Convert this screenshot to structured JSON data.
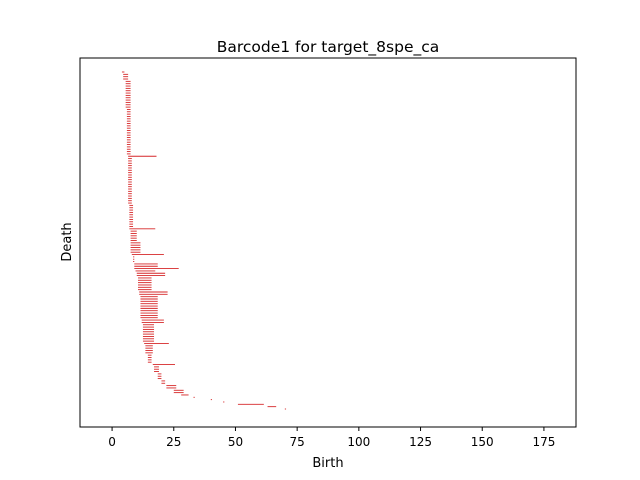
{
  "chart_data": {
    "type": "barcode",
    "title": "Barcode1 for target_8spe_ca",
    "xlabel": "Birth",
    "ylabel": "Death",
    "xlim": [
      -13,
      188
    ],
    "xticks": [
      0,
      25,
      50,
      75,
      100,
      125,
      150,
      175
    ],
    "bar_color": "#d62728",
    "intervals": [
      {
        "birth": 4.0,
        "death": 5.0,
        "bars": 1
      },
      {
        "birth": 4.5,
        "death": 6.5,
        "bars": 3
      },
      {
        "birth": 5.5,
        "death": 7.5,
        "bars": 12
      },
      {
        "birth": 6.0,
        "death": 7.5,
        "bars": 20
      },
      {
        "birth": 6.5,
        "death": 18.0,
        "bars": 1
      },
      {
        "birth": 6.5,
        "death": 8.0,
        "bars": 20
      },
      {
        "birth": 7.0,
        "death": 8.5,
        "bars": 10
      },
      {
        "birth": 7.0,
        "death": 17.5,
        "bars": 1
      },
      {
        "birth": 7.5,
        "death": 10.0,
        "bars": 5
      },
      {
        "birth": 7.5,
        "death": 11.5,
        "bars": 5
      },
      {
        "birth": 8.0,
        "death": 21.0,
        "bars": 1
      },
      {
        "birth": 8.5,
        "death": 9.0,
        "bars": 3
      },
      {
        "birth": 9.0,
        "death": 18.5,
        "bars": 2
      },
      {
        "birth": 9.0,
        "death": 27.0,
        "bars": 1
      },
      {
        "birth": 9.5,
        "death": 17.5,
        "bars": 1
      },
      {
        "birth": 10.0,
        "death": 21.5,
        "bars": 2
      },
      {
        "birth": 10.5,
        "death": 16.0,
        "bars": 6
      },
      {
        "birth": 11.0,
        "death": 22.5,
        "bars": 2
      },
      {
        "birth": 11.5,
        "death": 18.5,
        "bars": 10
      },
      {
        "birth": 12.0,
        "death": 21.0,
        "bars": 2
      },
      {
        "birth": 12.5,
        "death": 17.0,
        "bars": 8
      },
      {
        "birth": 13.0,
        "death": 23.0,
        "bars": 1
      },
      {
        "birth": 13.5,
        "death": 16.5,
        "bars": 4
      },
      {
        "birth": 14.5,
        "death": 16.0,
        "bars": 4
      },
      {
        "birth": 16.5,
        "death": 25.5,
        "bars": 1
      },
      {
        "birth": 17.0,
        "death": 19.0,
        "bars": 3
      },
      {
        "birth": 18.5,
        "death": 20.0,
        "bars": 3
      },
      {
        "birth": 20.0,
        "death": 21.5,
        "bars": 2
      },
      {
        "birth": 22.0,
        "death": 26.0,
        "bars": 2
      },
      {
        "birth": 25.0,
        "death": 29.0,
        "bars": 2
      },
      {
        "birth": 28.0,
        "death": 31.0,
        "bars": 1
      },
      {
        "birth": 33.0,
        "death": 33.5,
        "bars": 1
      },
      {
        "birth": 40.0,
        "death": 40.5,
        "bars": 1
      },
      {
        "birth": 45.0,
        "death": 45.5,
        "bars": 1
      },
      {
        "birth": 51.0,
        "death": 61.5,
        "bars": 1
      },
      {
        "birth": 63.0,
        "death": 66.5,
        "bars": 1
      },
      {
        "birth": 70.0,
        "death": 70.5,
        "bars": 1
      }
    ]
  }
}
